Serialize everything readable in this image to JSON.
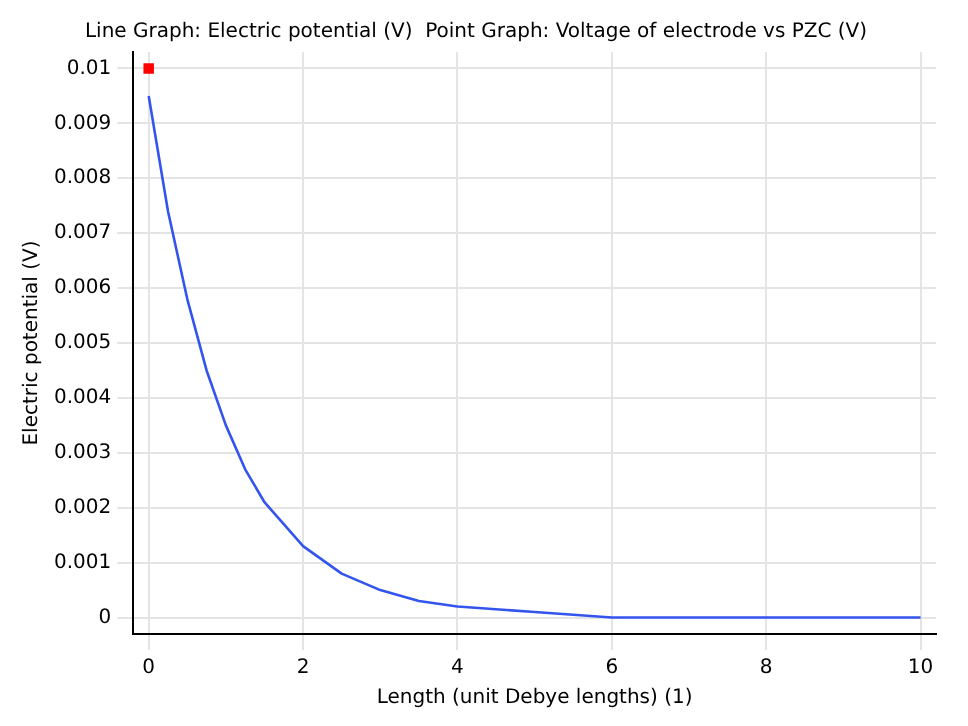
{
  "chart_data": {
    "type": "line",
    "title": "Line Graph: Electric potential (V)  Point Graph: Voltage of electrode vs PZC (V)",
    "xlabel": "Length (unit Debye lengths) (1)",
    "ylabel": "Electric potential (V)",
    "xlim": [
      -0.2,
      10.2
    ],
    "ylim": [
      -0.0003,
      0.0103
    ],
    "xticks": [
      0,
      2,
      4,
      6,
      8,
      10
    ],
    "yticks": [
      0,
      0.001,
      0.002,
      0.003,
      0.004,
      0.005,
      0.006,
      0.007,
      0.008,
      0.009,
      0.01
    ],
    "grid": true,
    "legend": false,
    "series": [
      {
        "type": "line",
        "color": "#3355ee",
        "marker": "none",
        "x": [
          0,
          0.25,
          0.5,
          0.75,
          1,
          1.25,
          1.5,
          1.75,
          2,
          2.5,
          3,
          3.5,
          4,
          5,
          6,
          7,
          8,
          9,
          10
        ],
        "values": [
          0.0095,
          0.0074,
          0.0058,
          0.0045,
          0.0035,
          0.0027,
          0.0021,
          0.0017,
          0.0013,
          0.0008,
          0.0005,
          0.0003,
          0.0002,
          0.0001,
          0,
          0,
          0,
          0,
          0
        ]
      },
      {
        "type": "scatter",
        "color": "#ff0000",
        "marker": "square",
        "x": [
          0
        ],
        "values": [
          0.01
        ]
      }
    ]
  }
}
